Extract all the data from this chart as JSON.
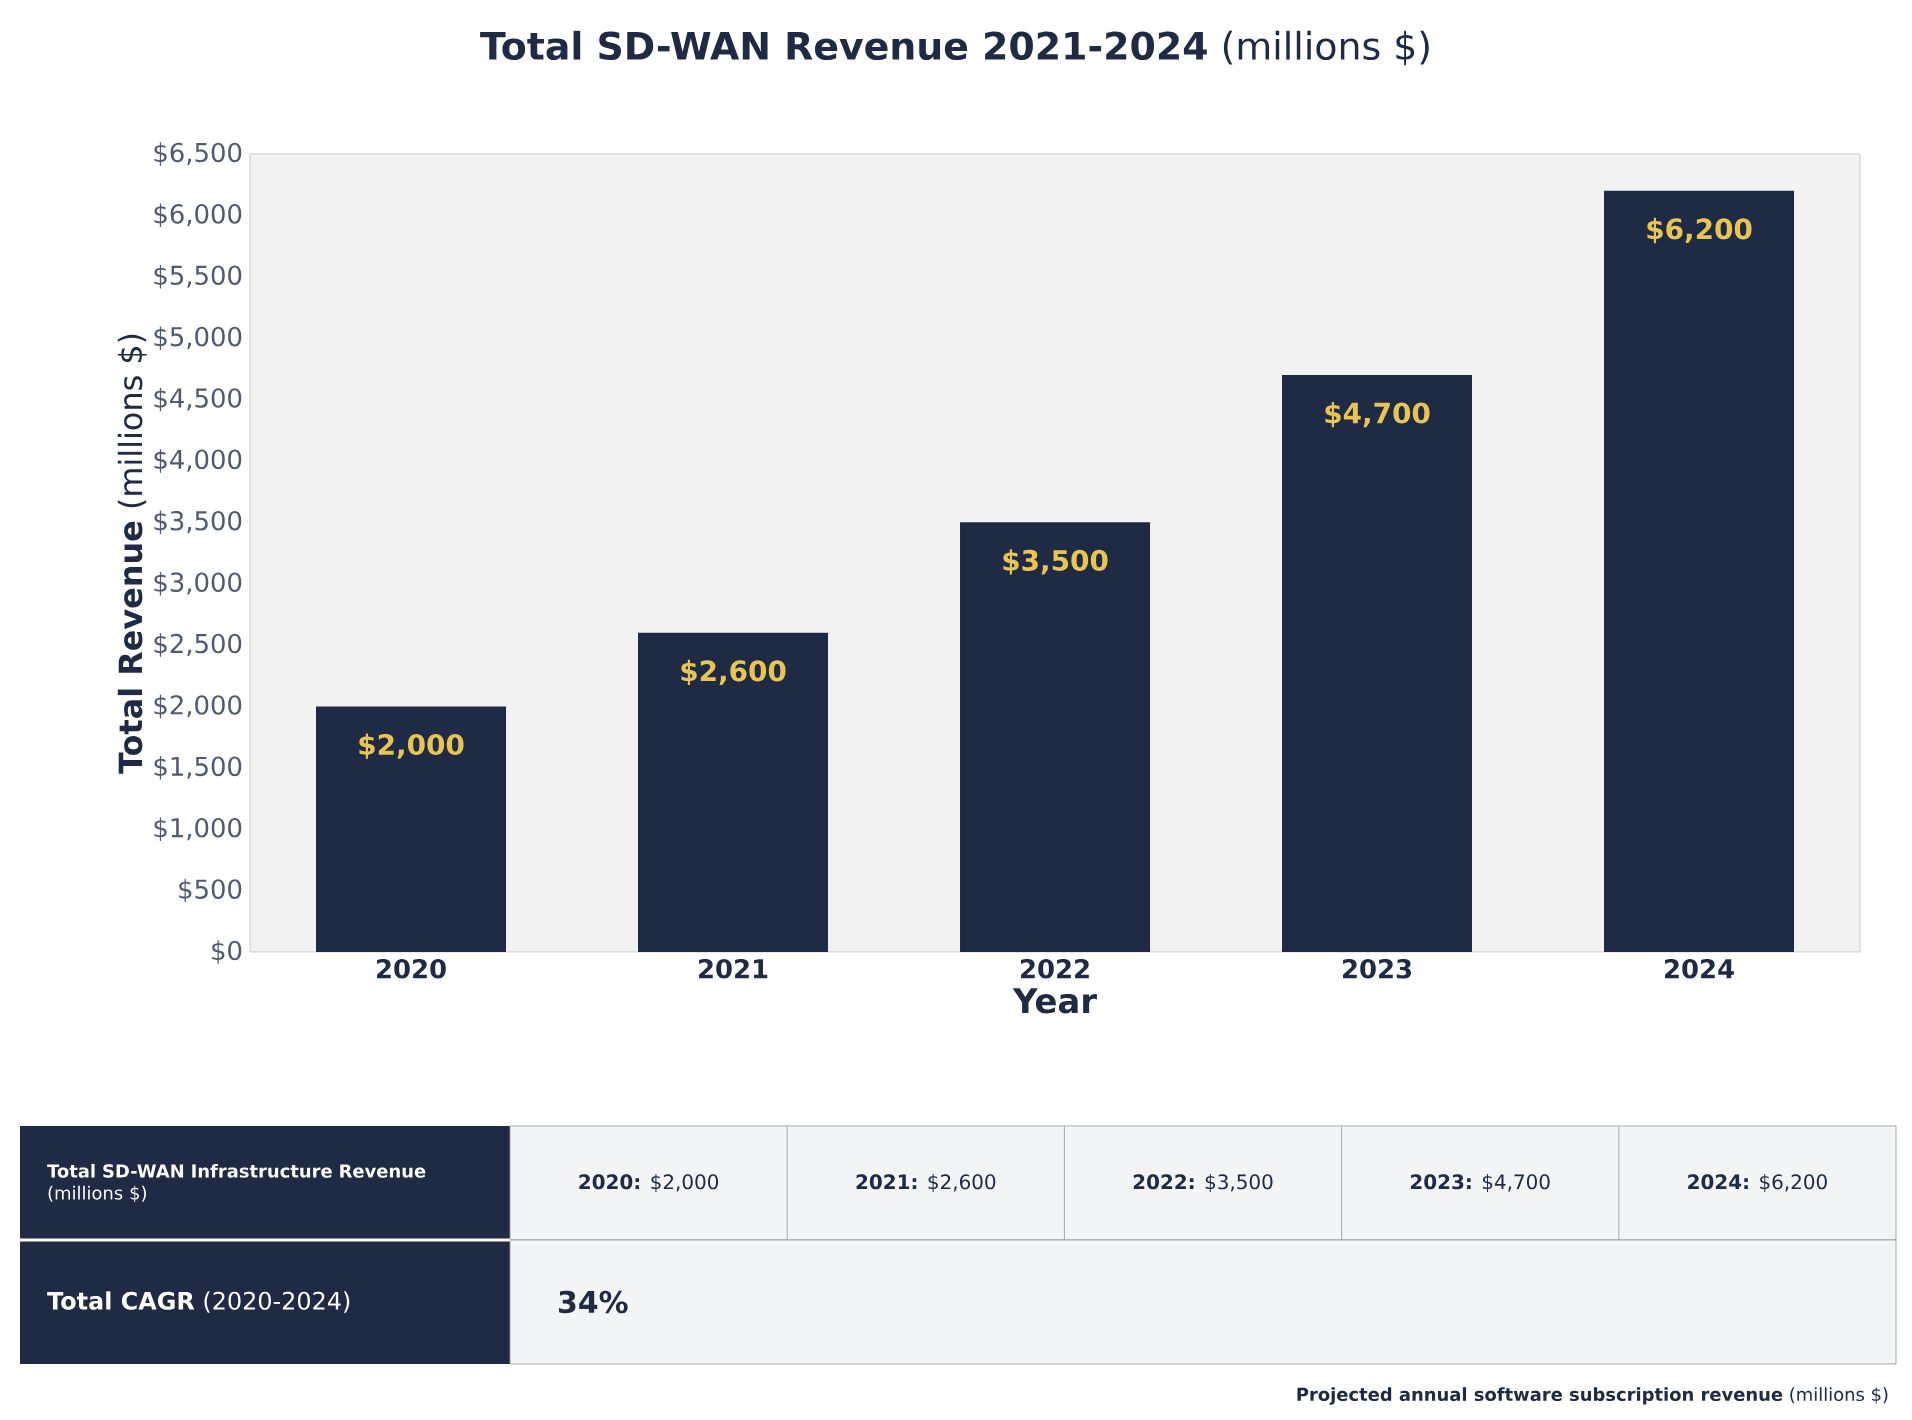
{
  "chart_data": {
    "type": "bar",
    "title": "**Total SD-WAN Revenue 2021-2024** (millions $)",
    "xlabel": "Year",
    "ylabel": "**Total Revenue** (millions $)",
    "categories": [
      "2020",
      "2021",
      "2022",
      "2023",
      "2024"
    ],
    "values": [
      2000,
      2600,
      3500,
      4700,
      6200
    ],
    "value_labels": [
      "$2,000",
      "$2,600",
      "$3,500",
      "$4,700",
      "$6,200"
    ],
    "color": "#1f2b45",
    "ylim": [
      0,
      6500
    ],
    "yticks": [
      {
        "value": 0,
        "label": "$0"
      },
      {
        "value": 500,
        "label": "$500"
      },
      {
        "value": 1000,
        "label": "$1,000"
      },
      {
        "value": 1500,
        "label": "$1,500"
      },
      {
        "value": 2000,
        "label": "$2,000"
      },
      {
        "value": 2500,
        "label": "$2,500"
      },
      {
        "value": 3000,
        "label": "$3,000"
      },
      {
        "value": 3500,
        "label": "$3,500"
      },
      {
        "value": 4000,
        "label": "$4,000"
      },
      {
        "value": 4500,
        "label": "$4,500"
      },
      {
        "value": 5000,
        "label": "$5,000"
      },
      {
        "value": 5500,
        "label": "$5,500"
      },
      {
        "value": 6000,
        "label": "$6,000"
      },
      {
        "value": 6500,
        "label": "$6,500"
      }
    ],
    "annotations": [
      "**Total SD-WAN Infrastructure Revenue** (millions $)",
      "**2020:** $2,000",
      "**2021:** $2,600",
      "**2022:** $3,500",
      "**2023:** $4,700",
      "**2024:** $6,200",
      "**Total CAGR** (2020-2024)",
      "34%",
      "**Projected annual software subscription revenue** (millions $)"
    ]
  }
}
